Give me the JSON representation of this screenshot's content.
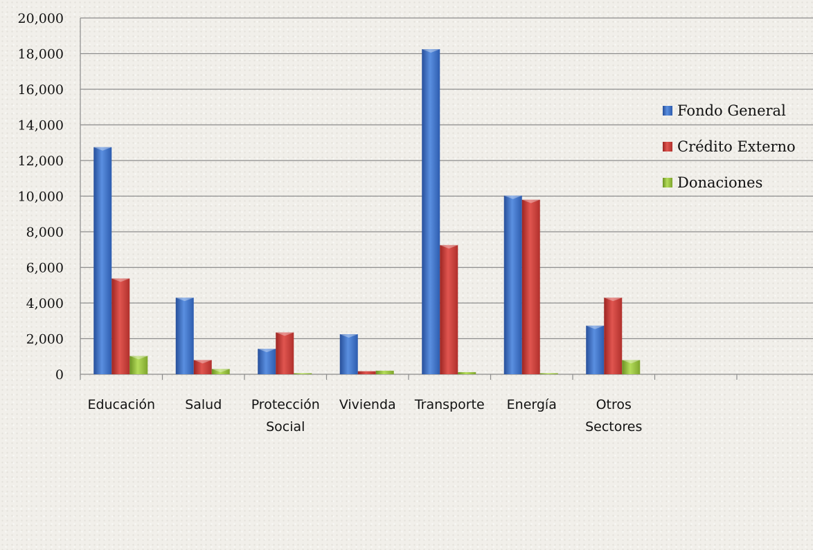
{
  "chart_data": {
    "type": "bar",
    "title": "",
    "xlabel": "",
    "ylabel": "",
    "categories": [
      "Educación",
      "Salud",
      "Protección Social",
      "Vivienda",
      "Transporte",
      "Energía",
      "Otros Sectores",
      "",
      ""
    ],
    "series": [
      {
        "name": "Fondo General",
        "color": "#3a6fc0",
        "values": [
          12750,
          4300,
          1430,
          2250,
          18250,
          10030,
          2730,
          null,
          null
        ]
      },
      {
        "name": "Crédito Externo",
        "color": "#c83a36",
        "values": [
          5380,
          800,
          2350,
          170,
          7250,
          9800,
          4300,
          null,
          null
        ]
      },
      {
        "name": "Donaciones",
        "color": "#96c142",
        "values": [
          1030,
          300,
          0,
          200,
          120,
          10,
          800,
          null,
          null
        ]
      }
    ],
    "y_ticks": [
      "0",
      "2,000",
      "4,000",
      "6,000",
      "8,000",
      "10,000",
      "12,000",
      "14,000",
      "16,000",
      "18,000",
      "20,000"
    ],
    "ylim": [
      0,
      20000
    ],
    "grid": true,
    "legend_position": "right"
  }
}
